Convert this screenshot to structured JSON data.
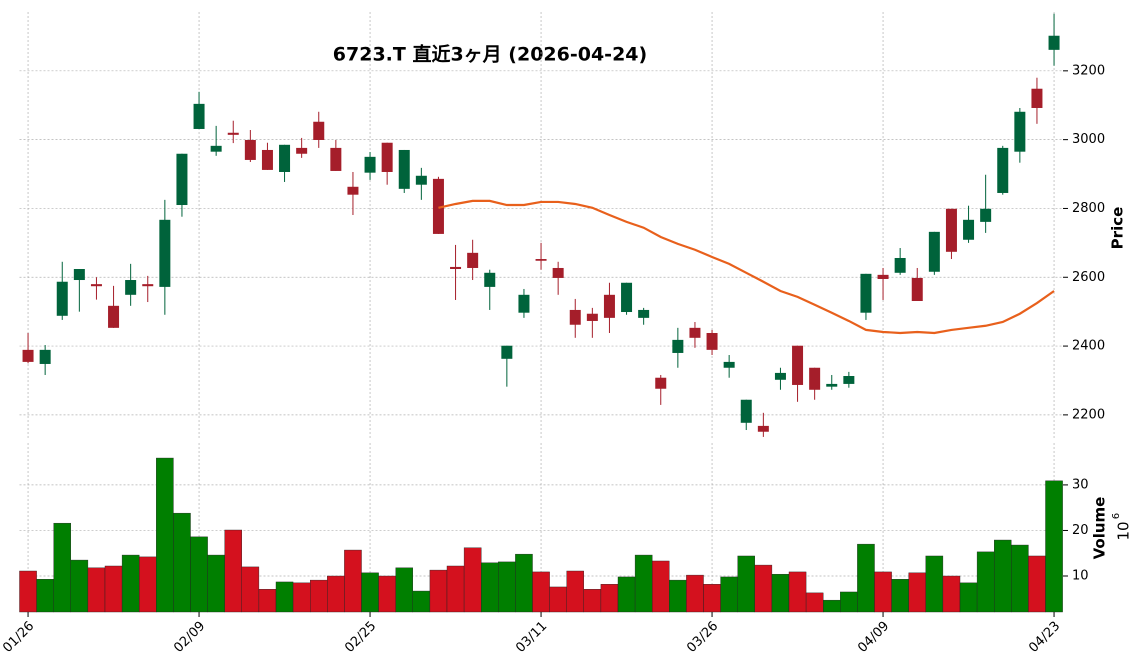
{
  "chart_data": [
    {
      "type": "candlestick",
      "title": "6723.T  直近3ヶ月  (2026-04-24)",
      "ylabel": "Price",
      "open": [
        2389,
        2348,
        2488,
        2592,
        2580,
        2517,
        2549,
        2580,
        2572,
        2810,
        3031,
        2965,
        3020,
        2999,
        2970,
        2906,
        2976,
        3052,
        2976,
        2863,
        2904,
        2991,
        2857,
        2869,
        2886,
        2630,
        2671,
        2572,
        2363,
        2497,
        2653,
        2627,
        2505,
        2494,
        2549,
        2499,
        2482,
        2308,
        2380,
        2453,
        2438,
        2337,
        2177,
        2168,
        2302,
        2401,
        2337,
        2282,
        2290,
        2497,
        2607,
        2613,
        2598,
        2616,
        2799,
        2709,
        2761,
        2845,
        2965,
        3148,
        3261
      ],
      "high": [
        2438,
        2403,
        2645,
        2624,
        2600,
        2575,
        2639,
        2604,
        2825,
        2959,
        3139,
        3040,
        3055,
        3028,
        2991,
        2985,
        3005,
        3081,
        2999,
        2906,
        2964,
        2991,
        2970,
        2918,
        2892,
        2694,
        2709,
        2622,
        2401,
        2566,
        2700,
        2645,
        2537,
        2511,
        2584,
        2584,
        2511,
        2316,
        2453,
        2470,
        2447,
        2374,
        2244,
        2206,
        2337,
        2401,
        2337,
        2316,
        2325,
        2610,
        2627,
        2685,
        2627,
        2732,
        2799,
        2808,
        2898,
        2982,
        3092,
        3180,
        3366
      ],
      "low": [
        2350,
        2316,
        2476,
        2500,
        2535,
        2453,
        2517,
        2528,
        2491,
        2776,
        3031,
        2953,
        2990,
        2935,
        2912,
        2877,
        2947,
        2976,
        2909,
        2781,
        2883,
        2869,
        2845,
        2825,
        2726,
        2534,
        2592,
        2505,
        2282,
        2482,
        2622,
        2549,
        2424,
        2424,
        2438,
        2491,
        2462,
        2229,
        2337,
        2395,
        2374,
        2308,
        2156,
        2136,
        2273,
        2238,
        2244,
        2273,
        2279,
        2476,
        2534,
        2607,
        2531,
        2607,
        2653,
        2700,
        2729,
        2840,
        2933,
        3046,
        3215
      ],
      "close": [
        2354,
        2389,
        2587,
        2624,
        2574,
        2453,
        2592,
        2574,
        2767,
        2959,
        3104,
        2982,
        3014,
        2941,
        2912,
        2985,
        2959,
        2999,
        2909,
        2840,
        2950,
        2906,
        2970,
        2895,
        2726,
        2624,
        2627,
        2613,
        2401,
        2549,
        2648,
        2598,
        2462,
        2473,
        2482,
        2584,
        2505,
        2276,
        2418,
        2424,
        2389,
        2354,
        2244,
        2151,
        2322,
        2287,
        2273,
        2290,
        2313,
        2610,
        2595,
        2656,
        2531,
        2732,
        2674,
        2767,
        2799,
        2976,
        3081,
        3092,
        3302
      ],
      "ma": {
        "color": "#e8601c",
        "values": [
          null,
          null,
          null,
          null,
          null,
          null,
          null,
          null,
          null,
          null,
          null,
          null,
          null,
          null,
          null,
          null,
          null,
          null,
          null,
          null,
          null,
          null,
          null,
          null,
          2802,
          2813,
          2822,
          2822,
          2810,
          2810,
          2819,
          2819,
          2813,
          2802,
          2781,
          2761,
          2744,
          2717,
          2697,
          2680,
          2659,
          2639,
          2613,
          2587,
          2560,
          2543,
          2520,
          2497,
          2473,
          2447,
          2441,
          2438,
          2441,
          2438,
          2447,
          2453,
          2459,
          2470,
          2494,
          2525,
          2560
        ]
      },
      "up_color": "#00633b",
      "down_color": "#a51e2a",
      "ylim": [
        2127,
        3371
      ],
      "yticks": [
        2200,
        2400,
        2600,
        2800,
        3000,
        3200
      ],
      "grid": true
    },
    {
      "type": "bar",
      "ylabel": "Volume",
      "multiplier": {
        "base": "10",
        "exponent": "6"
      },
      "categories": [
        "01/26",
        null,
        null,
        null,
        null,
        null,
        null,
        null,
        null,
        null,
        "02/09",
        null,
        null,
        null,
        null,
        null,
        null,
        null,
        null,
        null,
        "02/25",
        null,
        null,
        null,
        null,
        null,
        null,
        null,
        null,
        null,
        "03/11",
        null,
        null,
        null,
        null,
        null,
        null,
        null,
        null,
        null,
        "03/26",
        null,
        null,
        null,
        null,
        null,
        null,
        null,
        null,
        null,
        "04/09",
        null,
        null,
        null,
        null,
        null,
        null,
        null,
        null,
        null,
        "04/23"
      ],
      "values": [
        11.1,
        9.3,
        21.6,
        13.5,
        11.8,
        12.2,
        14.6,
        14.2,
        35.9,
        23.8,
        18.6,
        14.6,
        20.1,
        12.0,
        7.1,
        8.7,
        8.5,
        9.1,
        10.0,
        15.7,
        10.7,
        10.0,
        11.8,
        6.7,
        11.3,
        12.2,
        16.2,
        12.9,
        13.1,
        14.8,
        10.9,
        7.6,
        11.1,
        7.1,
        8.2,
        9.8,
        14.6,
        13.3,
        9.1,
        10.2,
        8.2,
        9.8,
        14.4,
        12.4,
        10.4,
        10.9,
        6.3,
        4.7,
        6.5,
        17.0,
        10.9,
        9.3,
        10.7,
        14.4,
        10.0,
        8.5,
        15.3,
        17.9,
        16.8,
        14.4,
        30.9
      ],
      "up_color": "#007f00",
      "down_color": "#d4111e",
      "ylim": [
        2.1,
        39.2
      ],
      "yticks": [
        10,
        20,
        30
      ],
      "grid": true
    }
  ]
}
